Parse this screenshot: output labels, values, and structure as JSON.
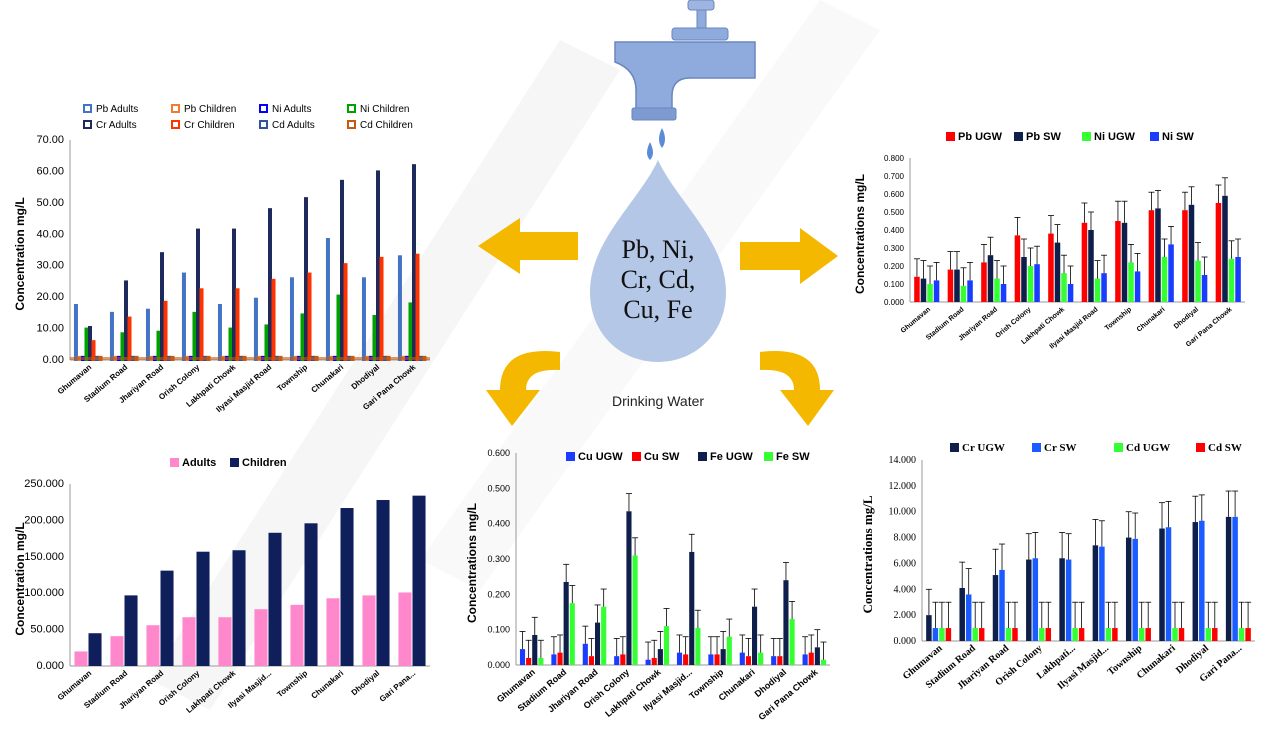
{
  "center": {
    "drop_text": [
      "Pb, Ni,",
      "Cr, Cd,",
      "Cu, Fe"
    ],
    "caption": "Drinking Water",
    "colors": {
      "drop": "#b4c7e7",
      "arrow": "#f5b800",
      "tap": "#8faadc",
      "watermark": "#d9d9d9"
    },
    "icons": [
      "faucet-icon",
      "water-drop-icon",
      "arrow-icon"
    ]
  },
  "chart_data": [
    {
      "id": "top-left",
      "type": "bar",
      "style": "hollow",
      "ylabel": "Concentration mg/L",
      "ylim": [
        0,
        70
      ],
      "yticks": [
        "0.00",
        "10.00",
        "20.00",
        "30.00",
        "40.00",
        "50.00",
        "60.00",
        "70.00"
      ],
      "legend_position": "top",
      "categories": [
        "Ghumavan",
        "Stadium Road",
        "Jhariyan Road",
        "Orish Colony",
        "Lakhpati Chowk",
        "Ilyasi Masjid Road",
        "Township",
        "Chunakari",
        "Dhodiyal",
        "Gari Pana Chowk"
      ],
      "series": [
        {
          "name": "Pb Adults",
          "color": "#4472c4",
          "values": [
            17.5,
            15,
            16,
            27.5,
            17.5,
            19.5,
            26,
            38.5,
            26,
            33
          ]
        },
        {
          "name": "Pb Children",
          "color": "#ed7d31",
          "values": [
            1,
            1,
            1,
            1,
            1,
            1,
            1,
            1,
            1,
            1
          ]
        },
        {
          "name": "Ni Adults",
          "color": "#0000ff",
          "values": [
            1,
            1,
            1,
            1,
            1,
            1,
            1,
            1,
            1,
            1
          ]
        },
        {
          "name": "Ni Children",
          "color": "#00a000",
          "values": [
            10,
            8.5,
            9,
            15,
            10,
            11,
            14.5,
            20.5,
            14,
            18
          ]
        },
        {
          "name": "Cr Adults",
          "color": "#1f2a5c",
          "values": [
            10.5,
            25,
            34,
            41.5,
            41.5,
            48,
            51.5,
            57,
            60,
            62
          ]
        },
        {
          "name": "Cr Children",
          "color": "#ff3300",
          "values": [
            6,
            13.5,
            18.5,
            22.5,
            22.5,
            25.5,
            27.5,
            30.5,
            32.5,
            33.5
          ]
        },
        {
          "name": "Cd Adults",
          "color": "#2f5597",
          "values": [
            1,
            1,
            1,
            1,
            1,
            1,
            1,
            1,
            1,
            1
          ]
        },
        {
          "name": "Cd Children",
          "color": "#c55a11",
          "values": [
            1,
            1,
            1,
            1,
            1,
            1,
            1,
            1,
            1,
            1
          ]
        }
      ]
    },
    {
      "id": "top-right",
      "type": "bar",
      "style": "error",
      "ylabel": "Concentrations mg/L",
      "ylim": [
        0,
        0.8
      ],
      "yticks": [
        "0.000",
        "0.100",
        "0.200",
        "0.300",
        "0.400",
        "0.500",
        "0.600",
        "0.700",
        "0.800"
      ],
      "legend_position": "top",
      "categories": [
        "Ghumavan",
        "Stadium Road",
        "Jhariyan Road",
        "Orish Colony",
        "Lakhpati Chowk",
        "Ilyasi Masjid Road",
        "Township",
        "Chunakari",
        "Dhodiyal",
        "Gari Pana Chowk"
      ],
      "series": [
        {
          "name": "Pb UGW",
          "color": "#ff0000",
          "values": [
            0.14,
            0.18,
            0.22,
            0.37,
            0.38,
            0.44,
            0.45,
            0.51,
            0.51,
            0.55
          ],
          "errors": [
            0.1,
            0.1,
            0.1,
            0.1,
            0.1,
            0.11,
            0.11,
            0.1,
            0.1,
            0.1
          ]
        },
        {
          "name": "Pb SW",
          "color": "#0f1f4b",
          "values": [
            0.13,
            0.18,
            0.26,
            0.25,
            0.33,
            0.4,
            0.44,
            0.52,
            0.54,
            0.59
          ],
          "errors": [
            0.1,
            0.1,
            0.1,
            0.1,
            0.1,
            0.1,
            0.12,
            0.1,
            0.1,
            0.1
          ]
        },
        {
          "name": "Ni UGW",
          "color": "#33ff33",
          "values": [
            0.1,
            0.09,
            0.13,
            0.2,
            0.16,
            0.13,
            0.22,
            0.25,
            0.23,
            0.24
          ],
          "errors": [
            0.1,
            0.1,
            0.1,
            0.1,
            0.1,
            0.1,
            0.1,
            0.1,
            0.1,
            0.1
          ]
        },
        {
          "name": "Ni SW",
          "color": "#1a3cff",
          "values": [
            0.12,
            0.12,
            0.1,
            0.21,
            0.1,
            0.16,
            0.17,
            0.32,
            0.15,
            0.25
          ],
          "errors": [
            0.1,
            0.1,
            0.1,
            0.1,
            0.1,
            0.1,
            0.1,
            0.1,
            0.1,
            0.1
          ]
        }
      ]
    },
    {
      "id": "bottom-left",
      "type": "bar",
      "style": "solid",
      "ylabel": "Concentration mg/L",
      "ylim": [
        0,
        250
      ],
      "yticks": [
        "0.000",
        "50.000",
        "100.000",
        "150.000",
        "200.000",
        "250.000"
      ],
      "legend_position": "top",
      "categories": [
        "Ghumavan",
        "Stadium Road",
        "Jhariyan Road",
        "Orish Colony",
        "Lakhpati Chowk",
        "Ilyasi Masjid...",
        "Township",
        "Chunakari",
        "Dhodiyal",
        "Gari Pana..."
      ],
      "series": [
        {
          "name": "Adults",
          "color": "#ff88cc",
          "values": [
            20,
            41,
            56,
            67,
            67,
            78,
            84,
            93,
            97,
            101
          ]
        },
        {
          "name": "Children",
          "color": "#0f1f5c",
          "values": [
            45,
            97,
            131,
            157,
            159,
            183,
            196,
            217,
            228,
            234
          ]
        }
      ]
    },
    {
      "id": "bottom-middle",
      "type": "bar",
      "style": "error",
      "ylabel": "Concentrations mg/L",
      "ylim": [
        0,
        0.6
      ],
      "yticks": [
        "0.000",
        "0.100",
        "0.200",
        "0.300",
        "0.400",
        "0.500",
        "0.600"
      ],
      "legend_position": "top",
      "categories": [
        "Ghumavan",
        "Stadium Road",
        "Jhariyan Road",
        "Orish Colony",
        "Lakhpati Chowk",
        "Ilyasi Masjid...",
        "Township",
        "Chunakari",
        "Dhodiyal",
        "Gari Pana Chowk"
      ],
      "series": [
        {
          "name": "Cu UGW",
          "color": "#1a3cff",
          "values": [
            0.045,
            0.03,
            0.06,
            0.025,
            0.015,
            0.035,
            0.03,
            0.035,
            0.025,
            0.03
          ],
          "errors": [
            0.05,
            0.05,
            0.05,
            0.05,
            0.05,
            0.05,
            0.05,
            0.05,
            0.05,
            0.05
          ]
        },
        {
          "name": "Cu SW",
          "color": "#ff0000",
          "values": [
            0.02,
            0.035,
            0.025,
            0.03,
            0.02,
            0.03,
            0.03,
            0.025,
            0.025,
            0.035
          ],
          "errors": [
            0.05,
            0.05,
            0.05,
            0.05,
            0.05,
            0.05,
            0.05,
            0.05,
            0.05,
            0.05
          ]
        },
        {
          "name": "Fe UGW",
          "color": "#0f1f4b",
          "values": [
            0.085,
            0.235,
            0.12,
            0.435,
            0.045,
            0.32,
            0.045,
            0.165,
            0.24,
            0.05
          ],
          "errors": [
            0.05,
            0.05,
            0.05,
            0.05,
            0.05,
            0.05,
            0.05,
            0.05,
            0.05,
            0.05
          ]
        },
        {
          "name": "Fe SW",
          "color": "#33ff33",
          "values": [
            0.02,
            0.175,
            0.165,
            0.31,
            0.11,
            0.105,
            0.08,
            0.035,
            0.13,
            0.015
          ],
          "errors": [
            0.05,
            0.05,
            0.05,
            0.05,
            0.05,
            0.05,
            0.05,
            0.05,
            0.05,
            0.05
          ]
        }
      ]
    },
    {
      "id": "bottom-right",
      "type": "bar",
      "style": "error",
      "font": "serif",
      "ylabel": "Concentrations mg/L",
      "ylim": [
        0,
        14
      ],
      "yticks": [
        "0.000",
        "2.000",
        "4.000",
        "6.000",
        "8.000",
        "10.000",
        "12.000",
        "14.000"
      ],
      "legend_position": "top",
      "categories": [
        "Ghumavan",
        "Stadium Road",
        "Jhariyan Road",
        "Orish Colony",
        "Lakhpati...",
        "Ilyasi Masjid...",
        "Township",
        "Chunakari",
        "Dhodiyal",
        "Gari Pana..."
      ],
      "series": [
        {
          "name": "Cr UGW",
          "color": "#0f1f4b",
          "values": [
            2.0,
            4.1,
            5.1,
            6.3,
            6.4,
            7.4,
            8.0,
            8.7,
            9.2,
            9.6
          ],
          "errors": [
            2,
            2,
            2,
            2,
            2,
            2,
            2,
            2,
            2,
            2
          ]
        },
        {
          "name": "Cr SW",
          "color": "#1a5cff",
          "values": [
            1.0,
            3.6,
            5.5,
            6.4,
            6.3,
            7.3,
            7.9,
            8.8,
            9.3,
            9.6
          ],
          "errors": [
            2,
            2,
            2,
            2,
            2,
            2,
            2,
            2,
            2,
            2
          ]
        },
        {
          "name": "Cd UGW",
          "color": "#33ff33",
          "values": [
            1.0,
            1.0,
            1.0,
            1.0,
            1.0,
            1.0,
            1.0,
            1.0,
            1.0,
            1.0
          ],
          "errors": [
            2,
            2,
            2,
            2,
            2,
            2,
            2,
            2,
            2,
            2
          ]
        },
        {
          "name": "Cd SW",
          "color": "#ff0000",
          "values": [
            1.0,
            1.0,
            1.0,
            1.0,
            1.0,
            1.0,
            1.0,
            1.0,
            1.0,
            1.0
          ],
          "errors": [
            2,
            2,
            2,
            2,
            2,
            2,
            2,
            2,
            2,
            2
          ]
        }
      ]
    }
  ]
}
